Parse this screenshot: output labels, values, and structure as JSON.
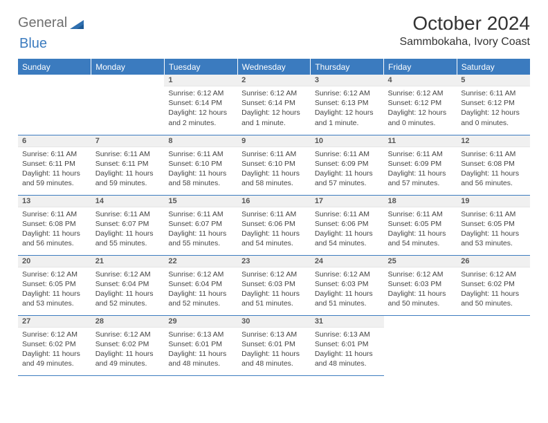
{
  "logo": {
    "word1": "General",
    "word2": "Blue",
    "shape_color": "#2f6faf"
  },
  "title": "October 2024",
  "location": "Sammbokaha, Ivory Coast",
  "colors": {
    "header_bg": "#3b7bbf",
    "header_fg": "#ffffff",
    "rule": "#3b7bbf",
    "daynum_bg": "#f0f0f0"
  },
  "weekdays": [
    "Sunday",
    "Monday",
    "Tuesday",
    "Wednesday",
    "Thursday",
    "Friday",
    "Saturday"
  ],
  "leading_blanks": 2,
  "days": [
    {
      "n": 1,
      "sr": "6:12 AM",
      "ss": "6:14 PM",
      "dl": "12 hours and 2 minutes."
    },
    {
      "n": 2,
      "sr": "6:12 AM",
      "ss": "6:14 PM",
      "dl": "12 hours and 1 minute."
    },
    {
      "n": 3,
      "sr": "6:12 AM",
      "ss": "6:13 PM",
      "dl": "12 hours and 1 minute."
    },
    {
      "n": 4,
      "sr": "6:12 AM",
      "ss": "6:12 PM",
      "dl": "12 hours and 0 minutes."
    },
    {
      "n": 5,
      "sr": "6:11 AM",
      "ss": "6:12 PM",
      "dl": "12 hours and 0 minutes."
    },
    {
      "n": 6,
      "sr": "6:11 AM",
      "ss": "6:11 PM",
      "dl": "11 hours and 59 minutes."
    },
    {
      "n": 7,
      "sr": "6:11 AM",
      "ss": "6:11 PM",
      "dl": "11 hours and 59 minutes."
    },
    {
      "n": 8,
      "sr": "6:11 AM",
      "ss": "6:10 PM",
      "dl": "11 hours and 58 minutes."
    },
    {
      "n": 9,
      "sr": "6:11 AM",
      "ss": "6:10 PM",
      "dl": "11 hours and 58 minutes."
    },
    {
      "n": 10,
      "sr": "6:11 AM",
      "ss": "6:09 PM",
      "dl": "11 hours and 57 minutes."
    },
    {
      "n": 11,
      "sr": "6:11 AM",
      "ss": "6:09 PM",
      "dl": "11 hours and 57 minutes."
    },
    {
      "n": 12,
      "sr": "6:11 AM",
      "ss": "6:08 PM",
      "dl": "11 hours and 56 minutes."
    },
    {
      "n": 13,
      "sr": "6:11 AM",
      "ss": "6:08 PM",
      "dl": "11 hours and 56 minutes."
    },
    {
      "n": 14,
      "sr": "6:11 AM",
      "ss": "6:07 PM",
      "dl": "11 hours and 55 minutes."
    },
    {
      "n": 15,
      "sr": "6:11 AM",
      "ss": "6:07 PM",
      "dl": "11 hours and 55 minutes."
    },
    {
      "n": 16,
      "sr": "6:11 AM",
      "ss": "6:06 PM",
      "dl": "11 hours and 54 minutes."
    },
    {
      "n": 17,
      "sr": "6:11 AM",
      "ss": "6:06 PM",
      "dl": "11 hours and 54 minutes."
    },
    {
      "n": 18,
      "sr": "6:11 AM",
      "ss": "6:05 PM",
      "dl": "11 hours and 54 minutes."
    },
    {
      "n": 19,
      "sr": "6:11 AM",
      "ss": "6:05 PM",
      "dl": "11 hours and 53 minutes."
    },
    {
      "n": 20,
      "sr": "6:12 AM",
      "ss": "6:05 PM",
      "dl": "11 hours and 53 minutes."
    },
    {
      "n": 21,
      "sr": "6:12 AM",
      "ss": "6:04 PM",
      "dl": "11 hours and 52 minutes."
    },
    {
      "n": 22,
      "sr": "6:12 AM",
      "ss": "6:04 PM",
      "dl": "11 hours and 52 minutes."
    },
    {
      "n": 23,
      "sr": "6:12 AM",
      "ss": "6:03 PM",
      "dl": "11 hours and 51 minutes."
    },
    {
      "n": 24,
      "sr": "6:12 AM",
      "ss": "6:03 PM",
      "dl": "11 hours and 51 minutes."
    },
    {
      "n": 25,
      "sr": "6:12 AM",
      "ss": "6:03 PM",
      "dl": "11 hours and 50 minutes."
    },
    {
      "n": 26,
      "sr": "6:12 AM",
      "ss": "6:02 PM",
      "dl": "11 hours and 50 minutes."
    },
    {
      "n": 27,
      "sr": "6:12 AM",
      "ss": "6:02 PM",
      "dl": "11 hours and 49 minutes."
    },
    {
      "n": 28,
      "sr": "6:12 AM",
      "ss": "6:02 PM",
      "dl": "11 hours and 49 minutes."
    },
    {
      "n": 29,
      "sr": "6:13 AM",
      "ss": "6:01 PM",
      "dl": "11 hours and 48 minutes."
    },
    {
      "n": 30,
      "sr": "6:13 AM",
      "ss": "6:01 PM",
      "dl": "11 hours and 48 minutes."
    },
    {
      "n": 31,
      "sr": "6:13 AM",
      "ss": "6:01 PM",
      "dl": "11 hours and 48 minutes."
    }
  ],
  "labels": {
    "sunrise": "Sunrise: ",
    "sunset": "Sunset: ",
    "daylight": "Daylight: "
  }
}
